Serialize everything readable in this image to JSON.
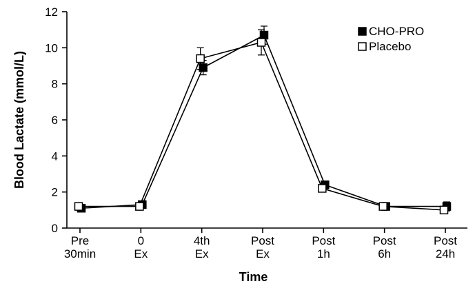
{
  "chart_data": {
    "type": "line",
    "title": "",
    "xlabel": "Time",
    "ylabel": "Blood Lactate (mmol/L)",
    "ylim": [
      0,
      12
    ],
    "yticks": [
      0,
      2,
      4,
      6,
      8,
      10,
      12
    ],
    "categories": [
      [
        "Pre",
        "30min"
      ],
      [
        "0",
        "Ex"
      ],
      [
        "4th",
        "Ex"
      ],
      [
        "Post",
        "Ex"
      ],
      [
        "Post",
        "1h"
      ],
      [
        "Post",
        "6h"
      ],
      [
        "Post",
        "24h"
      ]
    ],
    "series": [
      {
        "name": "CHO-PRO",
        "marker": "filled-square",
        "color": "#000000",
        "values": [
          1.1,
          1.3,
          8.9,
          10.7,
          2.4,
          1.2,
          1.2
        ],
        "errors": [
          0.1,
          0.1,
          0.4,
          0.5,
          0.15,
          0.1,
          0.25
        ]
      },
      {
        "name": "Placebo",
        "marker": "open-square",
        "color": "#000000",
        "values": [
          1.2,
          1.2,
          9.4,
          10.3,
          2.2,
          1.2,
          1.0
        ],
        "errors": [
          0.1,
          0.1,
          0.6,
          0.7,
          0.15,
          0.1,
          0.15
        ]
      }
    ],
    "legend_position": "top-right",
    "grid": false
  }
}
